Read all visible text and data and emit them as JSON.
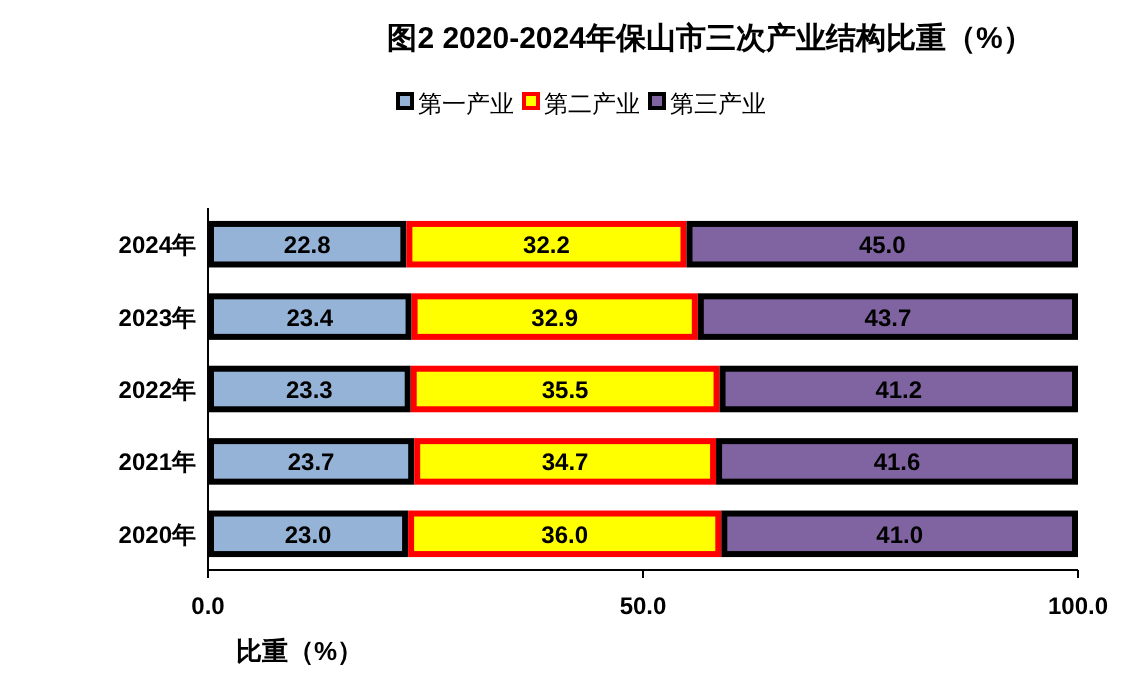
{
  "chart_data": {
    "type": "bar",
    "orientation": "horizontal",
    "stacked": true,
    "title": "图2   2020-2024年保山市三次产业结构比重（%）",
    "xlabel": "比重（%）",
    "categories": [
      "2024年",
      "2023年",
      "2022年",
      "2021年",
      "2020年"
    ],
    "series": [
      {
        "name": "第一产业",
        "color": "#95b3d7",
        "values": [
          22.8,
          23.4,
          23.3,
          23.7,
          23.0
        ],
        "value_labels": [
          "22.8",
          "23.4",
          "23.3",
          "23.7",
          "23.0"
        ]
      },
      {
        "name": "第二产业",
        "color": "#ffff00",
        "values": [
          32.2,
          32.9,
          35.5,
          34.7,
          36.0
        ],
        "value_labels": [
          "32.2",
          "32.9",
          "35.5",
          "34.7",
          "36.0"
        ]
      },
      {
        "name": "第三产业",
        "color": "#8064a2",
        "values": [
          45.0,
          43.7,
          41.2,
          41.6,
          41.0
        ],
        "value_labels": [
          "45.0",
          "43.7",
          "41.2",
          "41.6",
          "41.0"
        ]
      }
    ],
    "xlim": [
      0,
      100
    ],
    "xticks": [
      {
        "value": 0,
        "label": "0.0"
      },
      {
        "value": 50,
        "label": "50.0"
      },
      {
        "value": 100,
        "label": "100.0"
      }
    ],
    "legend": "top",
    "grid": false
  }
}
